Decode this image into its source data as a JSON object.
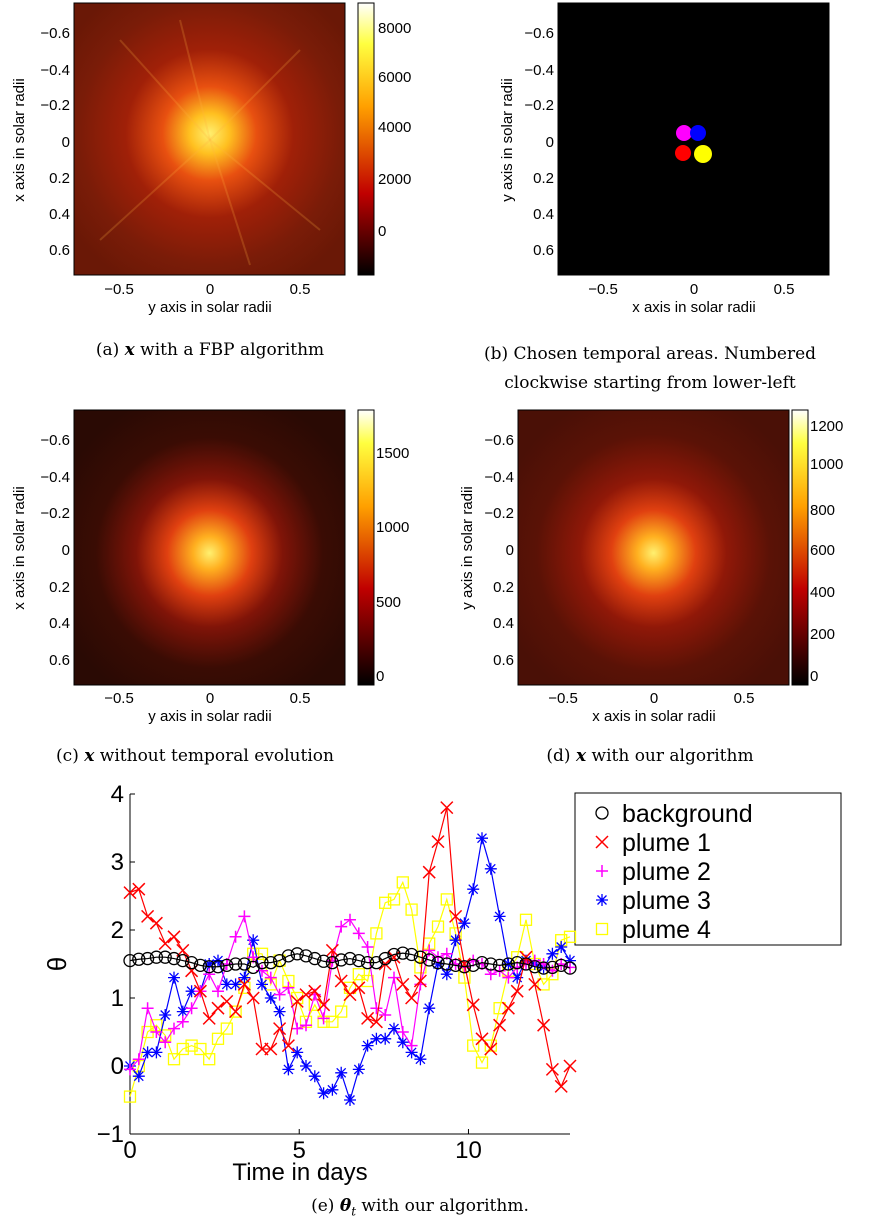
{
  "colors": {
    "background": "#000000",
    "plume_1": "#ff0000",
    "plume_2": "#ff00ff",
    "plume_3": "#0000ff",
    "plume_4": "#ffff00",
    "colormap": "hot"
  },
  "panels": {
    "a": {
      "xlabel": "y axis in solar radii",
      "ylabel": "x axis in solar radii",
      "xticks": [
        "−0.5",
        "0",
        "0.5"
      ],
      "yticks": [
        "−0.6",
        "−0.4",
        "−0.2",
        "0",
        "0.2",
        "0.4",
        "0.6"
      ],
      "colorbar_ticks": [
        "8000",
        "6000",
        "4000",
        "2000",
        "0"
      ],
      "caption_var": "x",
      "caption_text": " with a FBP algorithm",
      "caption_label": "(a)"
    },
    "b": {
      "xlabel": "x axis in solar radii",
      "ylabel": "y axis in solar radii",
      "xticks": [
        "−0.5",
        "0",
        "0.5"
      ],
      "yticks": [
        "−0.6",
        "−0.4",
        "−0.2",
        "0",
        "0.2",
        "0.4",
        "0.6"
      ],
      "caption_line1": "(b) Chosen temporal areas. Numbered",
      "caption_line2": "clockwise starting from lower-left"
    },
    "c": {
      "xlabel": "y axis in solar radii",
      "ylabel": "x axis in solar radii",
      "xticks": [
        "−0.5",
        "0",
        "0.5"
      ],
      "yticks": [
        "−0.6",
        "−0.4",
        "−0.2",
        "0",
        "0.2",
        "0.4",
        "0.6"
      ],
      "colorbar_ticks": [
        "1500",
        "1000",
        "500",
        "0"
      ],
      "caption_var": "x",
      "caption_text": " without temporal evolution",
      "caption_label": "(c)"
    },
    "d": {
      "xlabel": "x axis in solar radii",
      "ylabel": "y axis in solar radii",
      "xticks": [
        "−0.5",
        "0",
        "0.5"
      ],
      "yticks": [
        "−0.6",
        "−0.4",
        "−0.2",
        "0",
        "0.2",
        "0.4",
        "0.6"
      ],
      "colorbar_ticks": [
        "1200",
        "1000",
        "800",
        "600",
        "400",
        "200",
        "0"
      ],
      "caption_var": "x",
      "caption_text": " with our algorithm",
      "caption_label": "(d)"
    },
    "e": {
      "caption_label": "(e)",
      "caption_var": "θ",
      "caption_sub": "t",
      "caption_text": " with our algorithm."
    }
  },
  "chart_data": [
    {
      "type": "heatmap",
      "panel": "a",
      "colormap": "hot",
      "xlim": [
        -0.75,
        0.75
      ],
      "ylim": [
        -0.75,
        0.75
      ],
      "colorbar_range": [
        -1000,
        8800
      ]
    },
    {
      "type": "heatmap",
      "panel": "b",
      "xlim": [
        -0.75,
        0.75
      ],
      "ylim": [
        -0.75,
        0.75
      ],
      "regions": [
        {
          "color": "#ff0000",
          "x": -0.03,
          "y": 0.06
        },
        {
          "color": "#ff00ff",
          "x": -0.02,
          "y": -0.05
        },
        {
          "color": "#0000ff",
          "x": 0.06,
          "y": -0.05
        },
        {
          "color": "#ffff00",
          "x": 0.09,
          "y": 0.07
        }
      ]
    },
    {
      "type": "heatmap",
      "panel": "c",
      "colormap": "hot",
      "xlim": [
        -0.75,
        0.75
      ],
      "ylim": [
        -0.75,
        0.75
      ],
      "colorbar_range": [
        -100,
        1750
      ]
    },
    {
      "type": "heatmap",
      "panel": "d",
      "colormap": "hot",
      "xlim": [
        -0.75,
        0.75
      ],
      "ylim": [
        -0.75,
        0.75
      ],
      "colorbar_range": [
        -50,
        1250
      ]
    },
    {
      "type": "line",
      "panel": "e",
      "xlabel": "Time in days",
      "ylabel": "θ",
      "xlim": [
        0,
        13
      ],
      "ylim": [
        -1,
        4
      ],
      "xticks": [
        0,
        5,
        10
      ],
      "yticks": [
        -1,
        0,
        1,
        2,
        3,
        4
      ],
      "legend_position": "outside-right",
      "series": [
        {
          "name": "background",
          "color": "#000000",
          "marker": "circle",
          "y": [
            1.55,
            1.57,
            1.58,
            1.6,
            1.6,
            1.58,
            1.55,
            1.52,
            1.48,
            1.46,
            1.46,
            1.48,
            1.5,
            1.5,
            1.45,
            1.52,
            1.52,
            1.55,
            1.62,
            1.65,
            1.62,
            1.58,
            1.54,
            1.52,
            1.56,
            1.58,
            1.55,
            1.52,
            1.52,
            1.58,
            1.64,
            1.66,
            1.64,
            1.6,
            1.56,
            1.52,
            1.5,
            1.48,
            1.46,
            1.48,
            1.52,
            1.5,
            1.48,
            1.5,
            1.52,
            1.5,
            1.46,
            1.44,
            1.45,
            1.48,
            1.44
          ]
        },
        {
          "name": "plume 1",
          "color": "#ff0000",
          "marker": "x",
          "y": [
            2.55,
            2.6,
            2.2,
            2.1,
            1.8,
            1.9,
            1.7,
            1.4,
            1.1,
            0.7,
            0.85,
            0.95,
            0.8,
            1.2,
            1.0,
            0.25,
            0.25,
            0.55,
            0.3,
            0.95,
            1.05,
            1.1,
            0.9,
            1.7,
            1.25,
            1.05,
            1.15,
            0.7,
            0.65,
            1.5,
            1.6,
            1.2,
            1.0,
            1.25,
            2.85,
            3.3,
            3.8,
            2.2,
            1.5,
            0.9,
            0.4,
            0.25,
            0.6,
            0.85,
            1.1,
            1.6,
            1.2,
            0.6,
            -0.05,
            -0.3,
            0.0
          ]
        },
        {
          "name": "plume 2",
          "color": "#ff00ff",
          "marker": "plus",
          "y": [
            -0.05,
            0.1,
            0.85,
            0.5,
            0.35,
            0.55,
            0.65,
            0.85,
            1.1,
            1.35,
            1.1,
            1.5,
            1.9,
            2.2,
            1.6,
            1.4,
            1.3,
            1.05,
            1.15,
            0.55,
            0.6,
            1.05,
            0.7,
            1.55,
            2.05,
            2.15,
            1.95,
            1.75,
            0.85,
            0.75,
            1.3,
            0.5,
            0.3,
            1.2,
            1.7,
            1.6,
            1.65,
            1.5,
            1.45,
            1.55,
            1.5,
            1.35,
            1.4,
            1.3,
            1.45,
            1.5,
            1.55,
            1.5,
            1.4,
            1.5,
            1.45
          ]
        },
        {
          "name": "plume 3",
          "color": "#0000ff",
          "marker": "star",
          "y": [
            0.0,
            -0.15,
            0.2,
            0.2,
            0.75,
            1.3,
            0.8,
            1.1,
            1.1,
            1.5,
            1.55,
            1.2,
            1.2,
            1.3,
            1.85,
            1.2,
            1.0,
            0.8,
            -0.05,
            0.2,
            0.0,
            -0.15,
            -0.4,
            -0.35,
            -0.1,
            -0.5,
            -0.05,
            0.3,
            0.4,
            0.4,
            0.55,
            0.35,
            0.2,
            0.1,
            0.85,
            1.5,
            1.35,
            1.85,
            2.1,
            2.6,
            3.35,
            2.9,
            2.2,
            1.5,
            1.3,
            1.55,
            1.5,
            1.45,
            1.65,
            1.75,
            1.55
          ]
        },
        {
          "name": "plume 4",
          "color": "#ffff00",
          "marker": "square",
          "y": [
            -0.45,
            0.0,
            0.5,
            0.6,
            0.45,
            0.1,
            0.25,
            0.3,
            0.25,
            0.1,
            0.4,
            0.55,
            0.8,
            1.15,
            1.65,
            1.65,
            1.2,
            1.55,
            1.25,
            1.0,
            0.65,
            0.9,
            0.65,
            0.65,
            0.8,
            1.15,
            1.35,
            1.25,
            1.95,
            2.4,
            2.45,
            2.7,
            2.3,
            1.45,
            1.8,
            2.05,
            2.45,
            1.95,
            1.3,
            0.3,
            0.05,
            0.3,
            0.85,
            1.4,
            1.6,
            2.15,
            1.5,
            1.2,
            1.35,
            1.85,
            1.9
          ]
        }
      ]
    }
  ]
}
